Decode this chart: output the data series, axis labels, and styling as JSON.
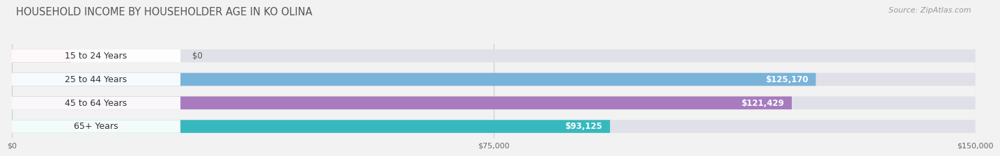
{
  "title": "HOUSEHOLD INCOME BY HOUSEHOLDER AGE IN KO OLINA",
  "source": "Source: ZipAtlas.com",
  "categories": [
    "15 to 24 Years",
    "25 to 44 Years",
    "45 to 64 Years",
    "65+ Years"
  ],
  "values": [
    0,
    125170,
    121429,
    93125
  ],
  "bar_colors": [
    "#e8909a",
    "#7ab3d9",
    "#a87bbf",
    "#36b8be"
  ],
  "value_labels": [
    "$0",
    "$125,170",
    "$121,429",
    "$93,125"
  ],
  "xlim_max": 150000,
  "xtick_labels": [
    "$0",
    "$75,000",
    "$150,000"
  ],
  "bg_color": "#f2f2f2",
  "bar_bg_color": "#e0e0e8",
  "white_label_bg": "#ffffff",
  "title_fontsize": 10.5,
  "source_fontsize": 8,
  "label_fontsize": 9,
  "value_fontsize": 8.5,
  "tick_fontsize": 8
}
